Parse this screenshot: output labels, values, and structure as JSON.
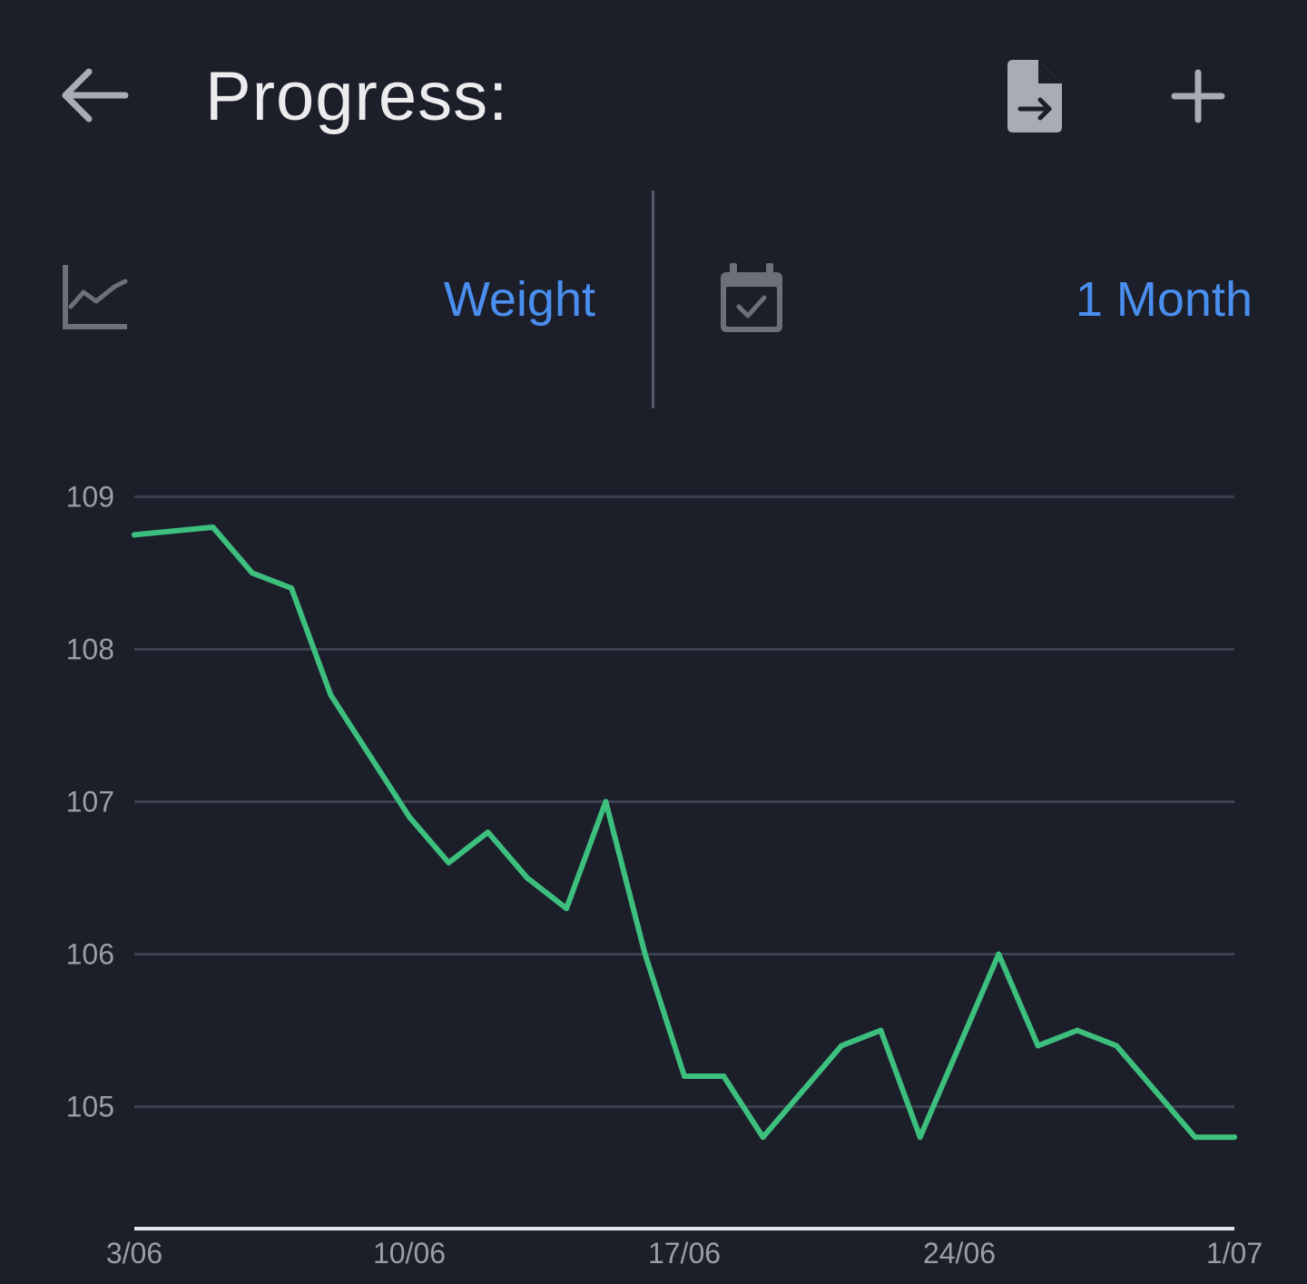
{
  "header": {
    "title": "Progress:",
    "back_icon": "arrow-left-icon",
    "export_icon": "file-export-icon",
    "add_icon": "plus-icon"
  },
  "selectors": {
    "metric": {
      "icon": "line-chart-icon",
      "label": "Weight"
    },
    "period": {
      "icon": "calendar-check-icon",
      "label": "1 Month"
    }
  },
  "colors": {
    "background": "#1c1f2a",
    "accent": "#4a8fef",
    "series": "#3dbf7e",
    "grid": "#3c4150",
    "axis": "#e6e6ea",
    "tick_text": "#9a9ea8"
  },
  "chart_data": {
    "type": "line",
    "title": "",
    "xlabel": "",
    "ylabel": "",
    "x_domain": [
      "3/06",
      "1/07"
    ],
    "xticks": [
      "3/06",
      "10/06",
      "17/06",
      "24/06",
      "1/07"
    ],
    "yticks": [
      105,
      106,
      107,
      108,
      109
    ],
    "ylim": [
      104.2,
      109.3
    ],
    "grid": true,
    "legend": "none",
    "series": [
      {
        "x": [
          "3/06",
          "5/06",
          "6/06",
          "7/06",
          "8/06",
          "9/06",
          "10/06",
          "11/06",
          "12/06",
          "13/06",
          "14/06",
          "15/06",
          "16/06",
          "17/06",
          "18/06",
          "19/06",
          "20/06",
          "21/06",
          "22/06",
          "23/06",
          "24/06",
          "25/06",
          "26/06",
          "27/06",
          "28/06",
          "29/06",
          "30/06",
          "1/07"
        ],
        "values": [
          108.75,
          108.8,
          108.5,
          108.4,
          107.7,
          107.3,
          106.9,
          106.6,
          106.8,
          106.5,
          106.3,
          107.0,
          106.0,
          105.2,
          105.2,
          104.8,
          105.1,
          105.4,
          105.5,
          104.8,
          105.4,
          106.0,
          105.4,
          105.5,
          105.4,
          105.1,
          104.8,
          104.8
        ]
      }
    ]
  }
}
